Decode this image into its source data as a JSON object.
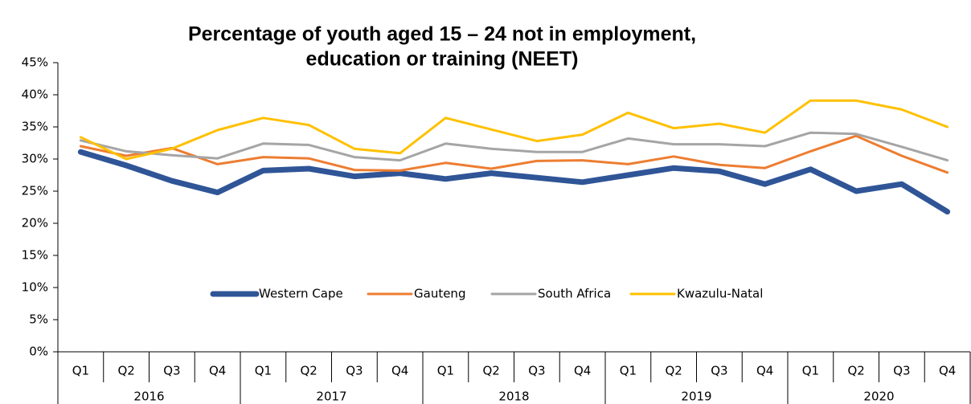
{
  "chart_data": {
    "type": "line",
    "title": [
      "Percentage of youth aged 15 – 24 not in employment,",
      "education or training (NEET)"
    ],
    "categories": [
      "Q1",
      "Q2",
      "Q3",
      "Q4",
      "Q1",
      "Q2",
      "Q3",
      "Q4",
      "Q1",
      "Q2",
      "Q3",
      "Q4",
      "Q1",
      "Q2",
      "Q3",
      "Q4",
      "Q1",
      "Q2",
      "Q3",
      "Q4"
    ],
    "year_groups": [
      "2016",
      "2017",
      "2018",
      "2019",
      "2020"
    ],
    "series": [
      {
        "name": "Western Cape",
        "color": "#2f5597",
        "width": 7,
        "values": [
          31.1,
          29.0,
          26.6,
          24.8,
          28.2,
          28.5,
          27.3,
          27.8,
          26.9,
          27.8,
          27.1,
          26.4,
          27.5,
          28.6,
          28.1,
          26.1,
          28.4,
          25.0,
          26.1,
          21.8
        ]
      },
      {
        "name": "Gauteng",
        "color": "#ed7d31",
        "width": 3,
        "values": [
          32.0,
          30.5,
          31.7,
          29.2,
          30.3,
          30.1,
          28.3,
          28.2,
          29.4,
          28.5,
          29.7,
          29.8,
          29.2,
          30.4,
          29.1,
          28.6,
          31.2,
          33.6,
          30.5,
          27.9
        ]
      },
      {
        "name": "South Africa",
        "color": "#a5a5a5",
        "width": 3,
        "values": [
          32.9,
          31.2,
          30.6,
          30.1,
          32.4,
          32.2,
          30.3,
          29.8,
          32.4,
          31.6,
          31.1,
          31.1,
          33.2,
          32.3,
          32.3,
          32.0,
          34.1,
          33.9,
          31.9,
          29.8
        ]
      },
      {
        "name": "Kwazulu-Natal",
        "color": "#ffc000",
        "width": 3,
        "values": [
          33.4,
          30.0,
          31.6,
          34.5,
          36.4,
          35.3,
          31.6,
          30.9,
          36.4,
          34.6,
          32.8,
          33.8,
          37.2,
          34.8,
          35.5,
          34.1,
          39.1,
          39.1,
          37.7,
          35.0
        ]
      }
    ],
    "ylim": [
      0,
      45
    ],
    "yticks": [
      {
        "value": 0,
        "label": "0%"
      },
      {
        "value": 5,
        "label": "5%"
      },
      {
        "value": 10,
        "label": "10%"
      },
      {
        "value": 15,
        "label": "15%"
      },
      {
        "value": 20,
        "label": "20%"
      },
      {
        "value": 25,
        "label": "25%"
      },
      {
        "value": 30,
        "label": "30%"
      },
      {
        "value": 35,
        "label": "35%"
      },
      {
        "value": 40,
        "label": "40%"
      },
      {
        "value": 45,
        "label": "45%"
      }
    ],
    "legend": "center"
  }
}
